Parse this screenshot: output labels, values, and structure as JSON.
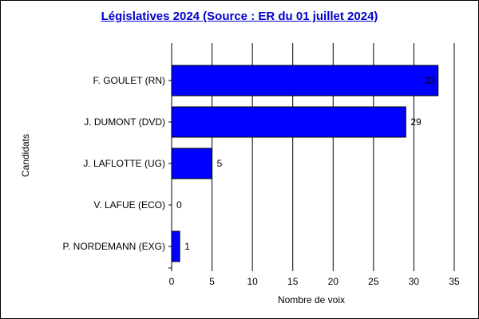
{
  "chart_data": {
    "type": "bar",
    "orientation": "horizontal",
    "title": "Législatives 2024 (Source : ER du 01 juillet 2024)",
    "xlabel": "Nombre de voix",
    "ylabel": "Candidats",
    "categories": [
      "F. GOULET (RN)",
      "J. DUMONT (DVD)",
      "J. LAFLOTTE (UG)",
      "V. LAFUE (ECO)",
      "P. NORDEMANN (EXG)"
    ],
    "values": [
      33,
      29,
      5,
      0,
      1
    ],
    "data_labels": [
      "33",
      "29",
      "5",
      "0",
      "1"
    ],
    "xlim": [
      0,
      35
    ],
    "xticks": [
      0,
      5,
      10,
      15,
      20,
      25,
      30,
      35
    ],
    "grid": "vertical",
    "legend": "none",
    "bar_color": "#0000ff",
    "title_color": "#0000cc"
  }
}
